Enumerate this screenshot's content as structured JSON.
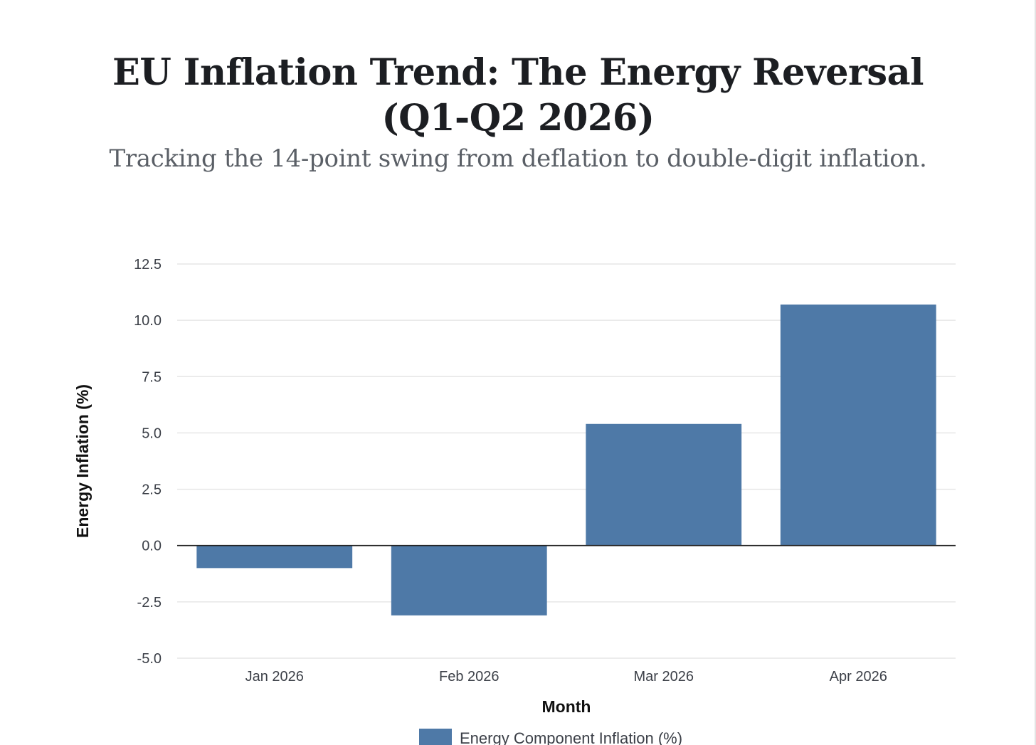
{
  "page": {
    "title": "EU Inflation Trend: The Energy Reversal (Q1-Q2 2026)",
    "subtitle": "Tracking the 14-point swing from deflation to double-digit inflation."
  },
  "chart_data": {
    "type": "bar",
    "categories": [
      "Jan 2026",
      "Feb 2026",
      "Mar 2026",
      "Apr 2026"
    ],
    "series": [
      {
        "name": "Energy Component Inflation (%)",
        "values": [
          -1.0,
          -3.1,
          5.4,
          10.7
        ],
        "color": "#4e79a7"
      }
    ],
    "xlabel": "Month",
    "ylabel": "Energy Inflation (%)",
    "ylim": [
      -5,
      12.5
    ],
    "yticks": [
      "-5.0",
      "-2.5",
      "0.0",
      "2.5",
      "5.0",
      "7.5",
      "10.0",
      "12.5"
    ],
    "grid": true,
    "legend": "bottom-center"
  }
}
